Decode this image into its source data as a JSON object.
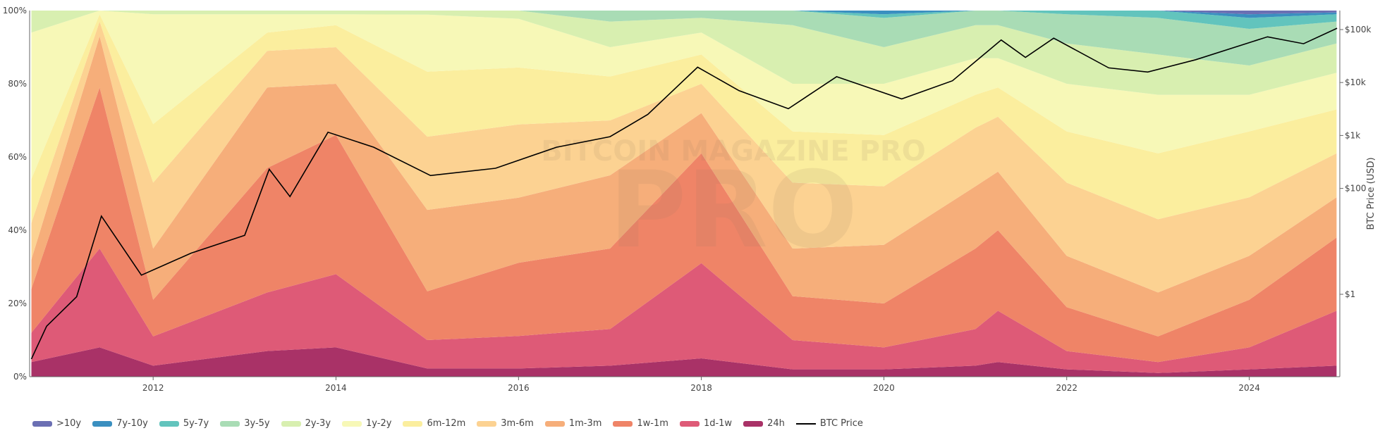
{
  "chart_data": {
    "type": "area",
    "stacked_percent": true,
    "x_type": "date",
    "x_ticks": [
      "2012",
      "2014",
      "2016",
      "2018",
      "2020",
      "2022",
      "2024"
    ],
    "y_ticks": [
      "0%",
      "20%",
      "40%",
      "60%",
      "80%",
      "100%"
    ],
    "ylim": [
      0,
      100
    ],
    "y2_label": "BTC Price (USD)",
    "y2_scale": "log",
    "y2_ticks": [
      "$1",
      "$100",
      "$1k",
      "$10k",
      "$100k"
    ],
    "y2_tick_values": [
      1,
      100,
      1000,
      10000,
      100000
    ],
    "watermark": "BITCOIN MAGAZINE PRO",
    "x": [
      "2010-09-01",
      "2011-06-01",
      "2012-01-01",
      "2013-04-01",
      "2014-01-01",
      "2015-01-01",
      "2016-01-01",
      "2017-01-01",
      "2018-01-01",
      "2019-01-01",
      "2020-01-01",
      "2021-01-01",
      "2021-04-01",
      "2022-01-01",
      "2023-01-01",
      "2024-01-01",
      "2024-12-15"
    ],
    "series": [
      {
        "name": "24h",
        "color": "#a93267",
        "values": [
          4,
          8,
          3,
          7,
          8,
          2,
          2,
          3,
          5,
          2,
          2,
          3,
          4,
          2,
          1,
          2,
          3
        ]
      },
      {
        "name": "1d-1w",
        "color": "#de5a77",
        "values": [
          8,
          27,
          8,
          16,
          20,
          7,
          8,
          10,
          26,
          8,
          6,
          10,
          14,
          5,
          3,
          6,
          15
        ]
      },
      {
        "name": "1w-1m",
        "color": "#ef8467",
        "values": [
          12,
          44,
          10,
          34,
          38,
          12,
          18,
          22,
          30,
          12,
          12,
          22,
          22,
          12,
          7,
          13,
          20
        ]
      },
      {
        "name": "1m-3m",
        "color": "#f6ae7a",
        "values": [
          8,
          14,
          14,
          22,
          14,
          20,
          16,
          20,
          11,
          13,
          16,
          17,
          16,
          14,
          12,
          12,
          11
        ]
      },
      {
        "name": "3m-6m",
        "color": "#fcd292",
        "values": [
          10,
          4,
          18,
          10,
          10,
          18,
          18,
          15,
          8,
          18,
          16,
          16,
          15,
          20,
          20,
          16,
          12
        ]
      },
      {
        "name": "6m-12m",
        "color": "#fbee9e",
        "values": [
          12,
          2,
          16,
          5,
          6,
          16,
          14,
          12,
          8,
          14,
          14,
          9,
          8,
          14,
          18,
          18,
          12
        ]
      },
      {
        "name": "1y-2y",
        "color": "#f7f8b7",
        "values": [
          40,
          1,
          30,
          5,
          3,
          14,
          12,
          8,
          6,
          13,
          14,
          10,
          8,
          13,
          16,
          10,
          10
        ]
      },
      {
        "name": "2y-3y",
        "color": "#d8efb0",
        "values": [
          6,
          0,
          1,
          1,
          1,
          1,
          2,
          7,
          4,
          16,
          10,
          9,
          9,
          11,
          11,
          8,
          8
        ]
      },
      {
        "name": "3y-5y",
        "color": "#a9dcb5",
        "values": [
          0,
          0,
          0,
          0,
          0,
          0,
          0,
          3,
          2,
          4,
          8,
          4,
          4,
          8,
          10,
          10,
          6
        ]
      },
      {
        "name": "5y-7y",
        "color": "#62c4bd",
        "values": [
          0,
          0,
          0,
          0,
          0,
          0,
          0,
          0,
          0,
          0,
          1,
          0,
          0,
          1,
          2,
          3,
          2
        ]
      },
      {
        "name": "7y-10y",
        "color": "#3a8fc0",
        "values": [
          0,
          0,
          0,
          0,
          0,
          0,
          0,
          0,
          0,
          0,
          1,
          0,
          0,
          0,
          0,
          1,
          0.5
        ]
      },
      {
        "name": ">10y",
        "color": "#6b6fb3",
        "values": [
          0,
          0,
          0,
          0,
          0,
          0,
          0,
          0,
          0,
          0,
          0,
          0,
          0,
          0,
          0,
          1,
          0.5
        ]
      }
    ],
    "price_series": {
      "name": "BTC Price",
      "color": "#000000",
      "dates": [
        "2010-09-01",
        "2010-11-01",
        "2011-03-01",
        "2011-06-08",
        "2011-11-15",
        "2012-06-01",
        "2013-01-01",
        "2013-04-09",
        "2013-07-01",
        "2013-11-30",
        "2014-06-01",
        "2015-01-14",
        "2015-10-01",
        "2016-06-01",
        "2017-01-01",
        "2017-06-01",
        "2017-12-17",
        "2018-06-01",
        "2018-12-15",
        "2019-06-26",
        "2020-03-12",
        "2020-10-01",
        "2021-04-14",
        "2021-07-20",
        "2021-11-10",
        "2022-06-18",
        "2022-11-21",
        "2023-06-01",
        "2024-03-14",
        "2024-08-05",
        "2024-12-17"
      ],
      "values": [
        0.06,
        0.25,
        0.9,
        30,
        2.3,
        6,
        13,
        230,
        70,
        1150,
        600,
        175,
        240,
        600,
        950,
        2500,
        19500,
        7000,
        3200,
        12900,
        4900,
        10800,
        63500,
        29800,
        68900,
        18900,
        15800,
        27000,
        73000,
        54000,
        106000
      ]
    },
    "legend": ">10y | 7y-10y | 5y-7y | 3y-5y | 2y-3y | 1y-2y | 6m-12m | 3m-6m | 1m-3m | 1w-1m | 1d-1w | 24h | BTC Price"
  }
}
